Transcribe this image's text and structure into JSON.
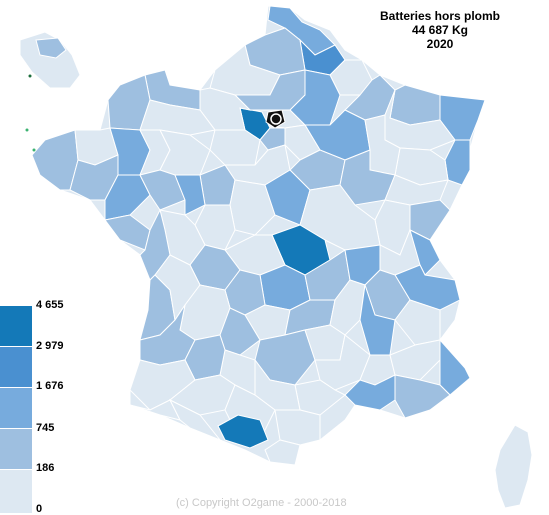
{
  "title": {
    "line1": "Batteries hors plomb",
    "line2": "44 687 Kg",
    "line3": "2020"
  },
  "legend": {
    "items": [
      {
        "label": "4 655",
        "color": "#1479b8"
      },
      {
        "label": "2 979",
        "color": "#4a90d0"
      },
      {
        "label": "1 676",
        "color": "#77abdd"
      },
      {
        "label": "745",
        "color": "#9ebfe0"
      },
      {
        "label": "186",
        "color": "#dde8f2"
      },
      {
        "label": "0",
        "color": "#dde8f2"
      }
    ]
  },
  "colors": {
    "background": "#ffffff",
    "border": "#ffffff",
    "level0": "#dde8f2",
    "level1": "#9ebfe0",
    "level2": "#77abdd",
    "level3": "#4a90d0",
    "level4": "#1479b8"
  },
  "copyright": "(c) Copyright O2game - 2000-2018"
}
